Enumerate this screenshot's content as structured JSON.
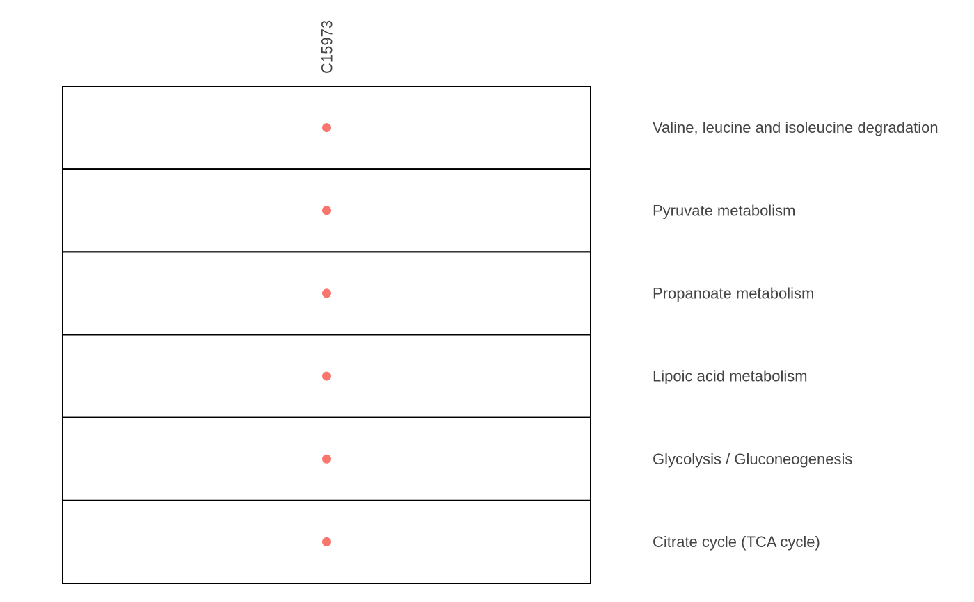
{
  "chart_data": {
    "type": "scatter",
    "columns": [
      "C15973"
    ],
    "rows": [
      "Valine, leucine and isoleucine degradation",
      "Pyruvate metabolism",
      "Propanoate metabolism",
      "Lipoic acid metabolism",
      "Glycolysis / Gluconeogenesis",
      "Citrate cycle (TCA cycle)"
    ],
    "points": [
      {
        "column": "C15973",
        "row": "Valine, leucine and isoleucine degradation"
      },
      {
        "column": "C15973",
        "row": "Pyruvate metabolism"
      },
      {
        "column": "C15973",
        "row": "Propanoate metabolism"
      },
      {
        "column": "C15973",
        "row": "Lipoic acid metabolism"
      },
      {
        "column": "C15973",
        "row": "Glycolysis / Gluconeogenesis"
      },
      {
        "column": "C15973",
        "row": "Citrate cycle (TCA cycle)"
      }
    ],
    "point_color": "#F8766D",
    "column_label_rotation": "vertical",
    "row_labels_position": "right",
    "grid": false
  }
}
